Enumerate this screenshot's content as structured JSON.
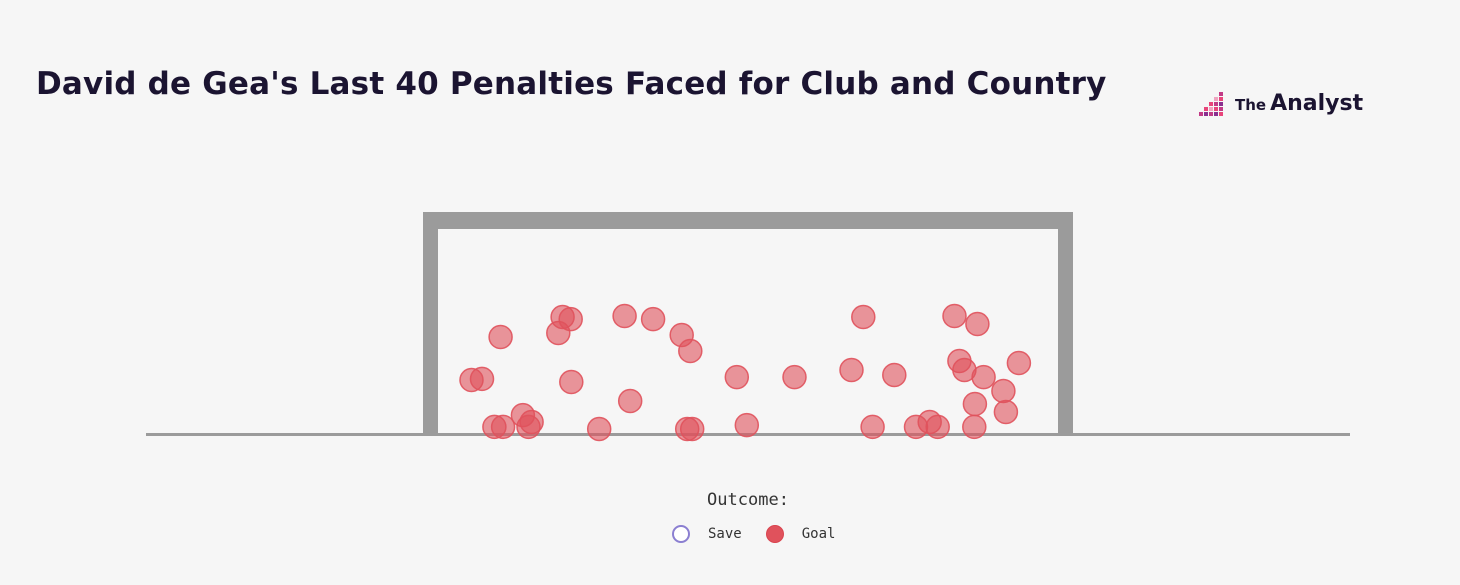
{
  "header": {
    "title": "David de Gea's Last 40 Penalties Faced for Club and Country"
  },
  "brand": {
    "prefix": "The",
    "name": "Analyst",
    "colors": [
      "#e8447a",
      "#c23a86",
      "#8a2f8f",
      "#f0a3c0"
    ]
  },
  "legend": {
    "title": "Outcome:",
    "items": [
      {
        "label": "Save",
        "color": "#8b7fd1"
      },
      {
        "label": "Goal",
        "color": "#e0525c"
      }
    ]
  },
  "chart_data": {
    "type": "scatter",
    "title": "David de Gea's Last 40 Penalties Faced for Club and Country",
    "x_range": [
      0,
      100
    ],
    "y_range": [
      0,
      100
    ],
    "grid": false,
    "legend_position": "bottom-center",
    "series": [
      {
        "name": "Goal",
        "color": "#e0525c",
        "points": [
          {
            "x": 5.4,
            "y": 35.2
          },
          {
            "x": 7.1,
            "y": 35.9
          },
          {
            "x": 10.1,
            "y": 64.8
          },
          {
            "x": 9.1,
            "y": 2.8
          },
          {
            "x": 10.5,
            "y": 2.8
          },
          {
            "x": 13.7,
            "y": 11.0
          },
          {
            "x": 15.1,
            "y": 6.2
          },
          {
            "x": 14.6,
            "y": 2.8
          },
          {
            "x": 19.4,
            "y": 67.6
          },
          {
            "x": 20.1,
            "y": 78.6
          },
          {
            "x": 21.4,
            "y": 77.2
          },
          {
            "x": 21.5,
            "y": 33.8
          },
          {
            "x": 26.0,
            "y": 1.4
          },
          {
            "x": 30.1,
            "y": 79.3
          },
          {
            "x": 31.0,
            "y": 20.7
          },
          {
            "x": 34.7,
            "y": 77.2
          },
          {
            "x": 39.3,
            "y": 66.2
          },
          {
            "x": 40.7,
            "y": 55.2
          },
          {
            "x": 40.2,
            "y": 1.4
          },
          {
            "x": 41.0,
            "y": 1.4
          },
          {
            "x": 48.2,
            "y": 37.2
          },
          {
            "x": 49.8,
            "y": 4.1
          },
          {
            "x": 57.5,
            "y": 37.2
          },
          {
            "x": 68.6,
            "y": 78.6
          },
          {
            "x": 66.7,
            "y": 42.1
          },
          {
            "x": 70.1,
            "y": 2.8
          },
          {
            "x": 73.6,
            "y": 38.6
          },
          {
            "x": 77.1,
            "y": 2.8
          },
          {
            "x": 79.3,
            "y": 6.2
          },
          {
            "x": 80.6,
            "y": 2.8
          },
          {
            "x": 83.3,
            "y": 79.3
          },
          {
            "x": 84.1,
            "y": 48.3
          },
          {
            "x": 84.9,
            "y": 42.1
          },
          {
            "x": 87.0,
            "y": 73.8
          },
          {
            "x": 88.0,
            "y": 37.2
          },
          {
            "x": 86.6,
            "y": 18.6
          },
          {
            "x": 86.5,
            "y": 2.8
          },
          {
            "x": 91.2,
            "y": 27.6
          },
          {
            "x": 91.6,
            "y": 13.1
          },
          {
            "x": 93.7,
            "y": 46.9
          }
        ]
      },
      {
        "name": "Save",
        "color": "#8b7fd1",
        "points": []
      }
    ]
  }
}
